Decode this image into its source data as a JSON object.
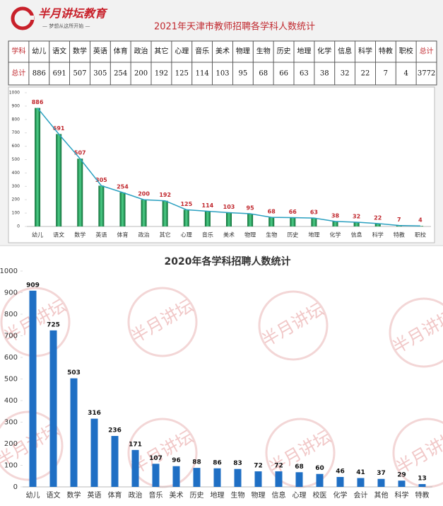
{
  "header": {
    "logo_name": "半月讲坛教育",
    "logo_slogan": "— 梦想从这所开始 —",
    "title": "2021年天津市教师招聘各学科人数统计"
  },
  "table": {
    "rows": [
      [
        "学科",
        "幼儿",
        "语文",
        "数学",
        "英语",
        "体育",
        "政治",
        "其它",
        "心理",
        "音乐",
        "美术",
        "物理",
        "生物",
        "历史",
        "地理",
        "化学",
        "信息",
        "科学",
        "特教",
        "职校",
        "总计"
      ],
      [
        "总计",
        886,
        691,
        507,
        305,
        254,
        200,
        192,
        125,
        114,
        103,
        95,
        68,
        66,
        63,
        38,
        32,
        22,
        7,
        4,
        3772
      ]
    ]
  },
  "watermark": "半月讲坛",
  "chart_data": [
    {
      "type": "bar",
      "line": true,
      "color": "#1f9e5a",
      "line_color": "#2aa0c0",
      "label_color": "#c0282e",
      "categories": [
        "幼儿",
        "语文",
        "数学",
        "英语",
        "体育",
        "政治",
        "其它",
        "心理",
        "音乐",
        "美术",
        "物理",
        "生物",
        "历史",
        "地理",
        "化学",
        "信息",
        "科学",
        "特教",
        "职校"
      ],
      "values": [
        886,
        691,
        507,
        305,
        254,
        200,
        192,
        125,
        114,
        103,
        95,
        68,
        66,
        63,
        38,
        32,
        22,
        7,
        4
      ],
      "ylim": [
        0,
        1000
      ],
      "yticks": [
        0,
        100,
        200,
        300,
        400,
        500,
        600,
        700,
        800,
        900,
        1000
      ],
      "grid": false
    },
    {
      "type": "bar",
      "line": false,
      "title": "2020年各学科招聘人数统计",
      "color": "#1f6fc4",
      "label_color": "#111111",
      "categories": [
        "幼儿",
        "语文",
        "数学",
        "英语",
        "体育",
        "政治",
        "音乐",
        "美术",
        "历史",
        "地理",
        "生物",
        "物理",
        "信息",
        "心理",
        "校医",
        "化学",
        "会计",
        "其他",
        "科学",
        "特教"
      ],
      "values": [
        909,
        725,
        503,
        316,
        236,
        171,
        107,
        96,
        88,
        86,
        83,
        72,
        72,
        68,
        60,
        46,
        41,
        37,
        29,
        13
      ],
      "ylim": [
        0,
        1000
      ],
      "yticks": [
        0,
        100,
        200,
        300,
        400,
        500,
        600,
        700,
        800,
        900,
        1000
      ],
      "grid": false
    }
  ]
}
